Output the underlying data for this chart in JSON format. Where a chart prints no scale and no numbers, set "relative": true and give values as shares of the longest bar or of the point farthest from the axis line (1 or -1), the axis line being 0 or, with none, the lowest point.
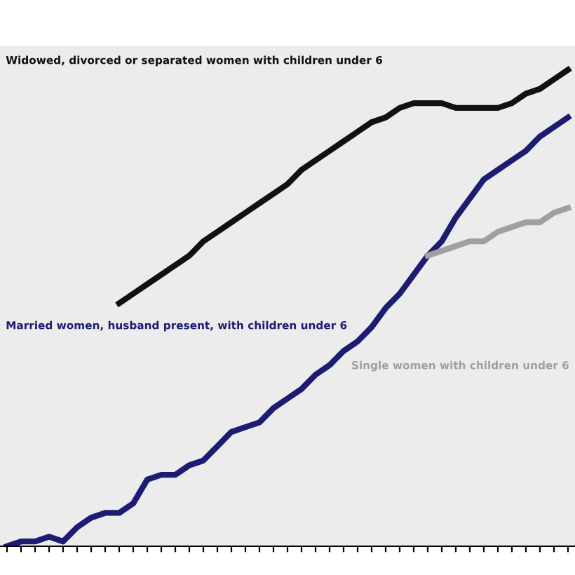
{
  "chart_data": {
    "type": "line",
    "relative": true,
    "categories": [
      null,
      null,
      null,
      null,
      null,
      null,
      null,
      null,
      null,
      null,
      null,
      null,
      null,
      null,
      null,
      null,
      null,
      null,
      null,
      null,
      null,
      null,
      null,
      null,
      null,
      null,
      null,
      null,
      null,
      null,
      null,
      null,
      null,
      null,
      null,
      null,
      null,
      null,
      null,
      null,
      null
    ],
    "series": [
      {
        "name": "Widowed, divorced or separated women with children under 6",
        "color": "#111111",
        "values": [
          null,
          null,
          null,
          null,
          null,
          null,
          null,
          null,
          0.51,
          0.53,
          0.55,
          0.57,
          0.59,
          0.61,
          0.64,
          0.66,
          0.68,
          0.7,
          0.72,
          0.74,
          0.76,
          0.79,
          0.81,
          0.83,
          0.85,
          0.87,
          0.89,
          0.9,
          0.92,
          0.93,
          0.93,
          0.93,
          0.92,
          0.92,
          0.92,
          0.92,
          0.93,
          0.95,
          0.96,
          0.98,
          1
        ]
      },
      {
        "name": "Married women, husband present, with children under 6",
        "color": "#1c1c72",
        "values": [
          0,
          0.01,
          0.01,
          0.02,
          0.01,
          0.04,
          0.06,
          0.07,
          0.07,
          0.09,
          0.14,
          0.15,
          0.15,
          0.17,
          0.18,
          0.21,
          0.24,
          0.25,
          0.26,
          0.29,
          0.31,
          0.33,
          0.36,
          0.38,
          0.41,
          0.43,
          0.46,
          0.5,
          0.53,
          0.57,
          0.61,
          0.64,
          0.69,
          0.73,
          0.77,
          0.79,
          0.81,
          0.83,
          0.86,
          0.88,
          0.9
        ]
      },
      {
        "name": "Single women with children under 6",
        "color": "#a0a0a0",
        "values": [
          null,
          null,
          null,
          null,
          null,
          null,
          null,
          null,
          null,
          null,
          null,
          null,
          null,
          null,
          null,
          null,
          null,
          null,
          null,
          null,
          null,
          null,
          null,
          null,
          null,
          null,
          null,
          null,
          null,
          null,
          0.61,
          0.62,
          0.63,
          0.64,
          0.64,
          0.66,
          0.67,
          0.68,
          0.68,
          0.7,
          0.71
        ]
      }
    ],
    "legend": false,
    "grid": false,
    "line_style": "solid",
    "marker": "none"
  }
}
